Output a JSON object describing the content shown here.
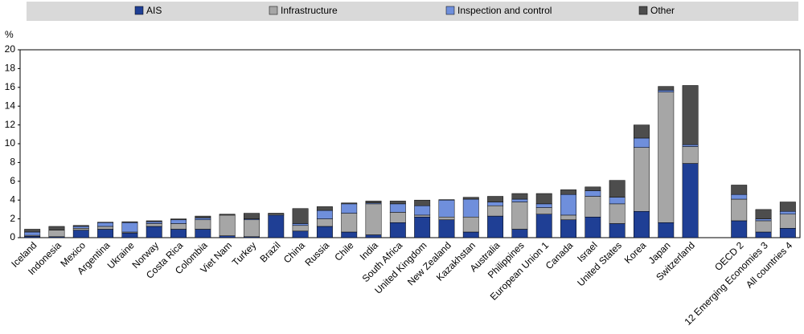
{
  "chart_data": {
    "type": "stacked_bar",
    "y_label": "%",
    "categories": [
      "Iceland",
      "Indonesia",
      "Mexico",
      "Argentina",
      "Ukraine",
      "Norway",
      "Costa Rica",
      "Colombia",
      "Viet Nam",
      "Turkey",
      "Brazil",
      "China",
      "Russia",
      "Chile",
      "India",
      "South Africa",
      "United Kingdom",
      "New Zealand",
      "Kazakhstan",
      "Australia",
      "Philippines",
      "European Union 1",
      "Canada",
      "Israel",
      "United States",
      "Korea",
      "Japan",
      "Switzerland",
      null,
      "OECD 2",
      "12 Emerging Economies 3",
      "All countries 4"
    ],
    "series": [
      {
        "name": "AIS",
        "color": "#1f3f95",
        "values": [
          0.15,
          0.1,
          0.8,
          0.9,
          0.5,
          1.2,
          0.9,
          0.9,
          0.2,
          0.1,
          2.4,
          0.7,
          1.2,
          0.6,
          0.3,
          1.6,
          2.2,
          1.9,
          0.6,
          2.3,
          0.9,
          2.5,
          1.9,
          2.2,
          1.5,
          2.8,
          1.6,
          7.9,
          null,
          1.8,
          0.6,
          1.0
        ]
      },
      {
        "name": "Infrastructure",
        "color": "#a6a6a6",
        "values": [
          0.1,
          0.7,
          0.2,
          0.3,
          0.1,
          0.3,
          0.6,
          1.0,
          2.2,
          1.8,
          0.1,
          0.6,
          0.8,
          2.0,
          3.3,
          1.1,
          0.2,
          0.3,
          1.6,
          1.1,
          2.9,
          0.7,
          0.5,
          2.2,
          2.1,
          6.8,
          13.9,
          1.8,
          null,
          2.3,
          1.2,
          1.5
        ]
      },
      {
        "name": "Inspection and control",
        "color": "#6f8fdc",
        "values": [
          0.35,
          0,
          0.2,
          0.4,
          1.0,
          0.2,
          0.4,
          0.2,
          0,
          0.1,
          0,
          0.2,
          0.9,
          1.0,
          0.1,
          0.9,
          1.0,
          1.8,
          1.9,
          0.4,
          0.3,
          0.4,
          2.2,
          0.6,
          0.7,
          1.0,
          0.2,
          0.2,
          null,
          0.5,
          0.2,
          0.3
        ]
      },
      {
        "name": "Other",
        "color": "#4d4d4d",
        "values": [
          0.3,
          0.4,
          0.1,
          0.05,
          0.1,
          0.1,
          0.1,
          0.2,
          0.1,
          0.6,
          0.1,
          1.6,
          0.4,
          0.1,
          0.2,
          0.3,
          0.6,
          0.05,
          0.2,
          0.6,
          0.6,
          1.1,
          0.5,
          0.4,
          1.8,
          1.4,
          0.4,
          6.3,
          null,
          1.0,
          1.0,
          1.0
        ]
      }
    ],
    "ylim": [
      0,
      20
    ],
    "yticks": [
      0,
      2,
      4,
      6,
      8,
      10,
      12,
      14,
      16,
      18,
      20
    ],
    "grid": false
  }
}
